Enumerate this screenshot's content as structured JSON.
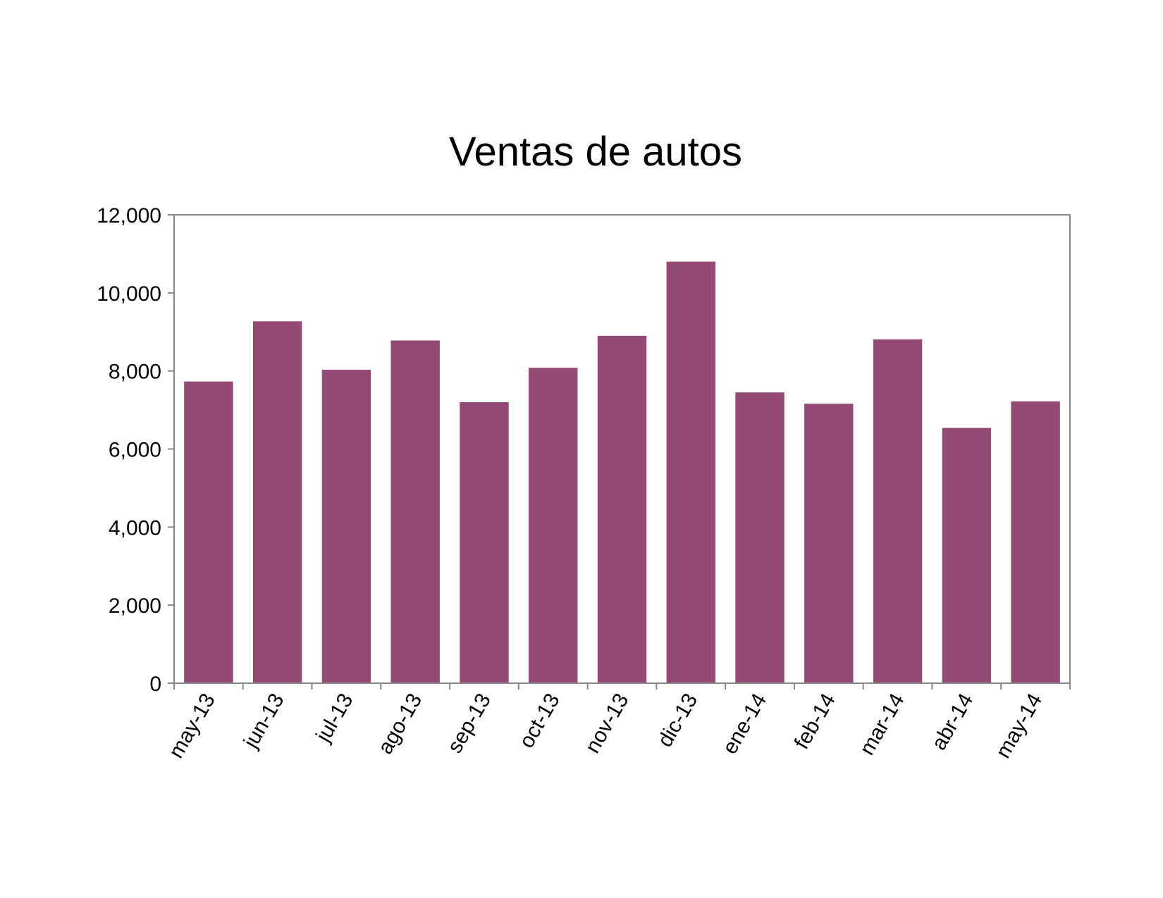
{
  "chart_data": {
    "type": "bar",
    "title": "Ventas de autos",
    "xlabel": "",
    "ylabel": "",
    "categories": [
      "may-13",
      "jun-13",
      "jul-13",
      "ago-13",
      "sep-13",
      "oct-13",
      "nov-13",
      "dic-13",
      "ene-14",
      "feb-14",
      "mar-14",
      "abr-14",
      "may-14"
    ],
    "values": [
      7730,
      9270,
      8030,
      8780,
      7200,
      8080,
      8900,
      10800,
      7450,
      7160,
      8810,
      6540,
      7220
    ],
    "ylim": [
      0,
      12000
    ],
    "yticks": [
      0,
      2000,
      4000,
      6000,
      8000,
      10000,
      12000
    ],
    "ytick_labels": [
      "0",
      "2,000",
      "4,000",
      "6,000",
      "8,000",
      "10,000",
      "12,000"
    ],
    "grid": false,
    "legend": "none",
    "bar_color": "#954a76",
    "axis_color": "#888888"
  }
}
